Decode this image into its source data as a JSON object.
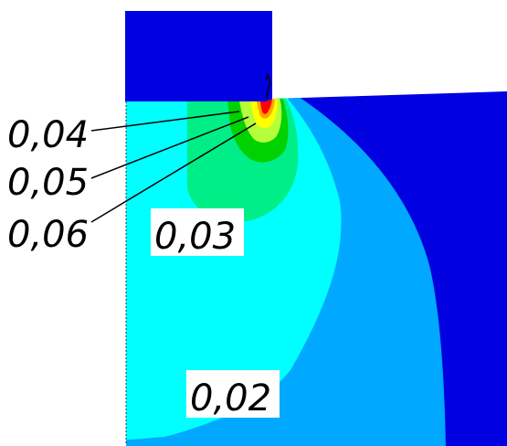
{
  "colors": {
    "background": "#ffffff",
    "top_block": "#0000e0",
    "outer_region": "#0000e0",
    "band_002": "#00a8ff",
    "band_003": "#00ffff",
    "band_004": "#00ee88",
    "band_005": "#00d100",
    "band_006": "#b5ff3a",
    "band_007": "#ffff00",
    "band_008": "#ffa500",
    "peak": "#ff0000",
    "leader_lines": "#000000"
  },
  "labels": {
    "c1": "0,04",
    "c2": "0,05",
    "c3": "0,06",
    "c4": "0,03",
    "c5": "0,02"
  }
}
